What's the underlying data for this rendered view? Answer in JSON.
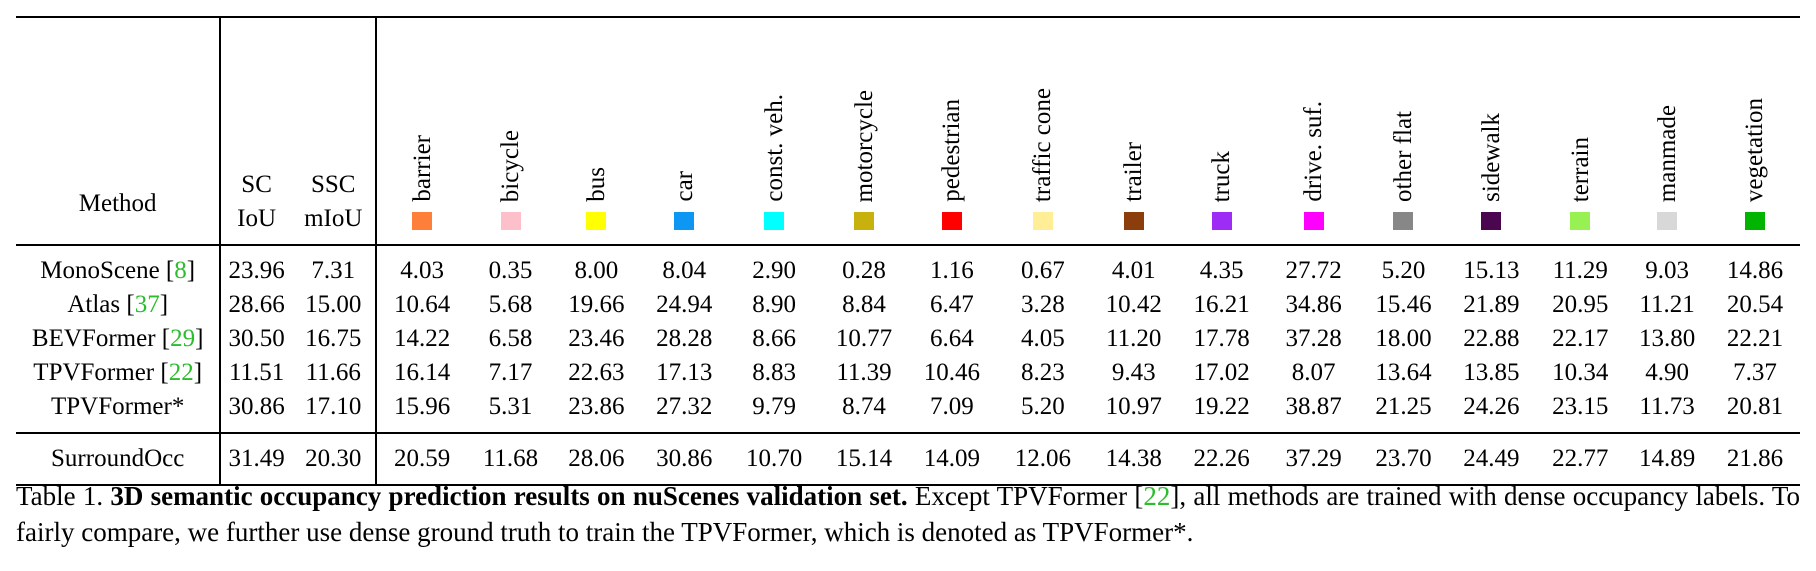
{
  "table": {
    "headers": {
      "method": "Method",
      "sc_line1": "SC",
      "sc_line2": "IoU",
      "ssc_line1": "SSC",
      "ssc_line2": "mIoU"
    },
    "classes": [
      {
        "name": "barrier",
        "color": "#fe7f3a"
      },
      {
        "name": "bicycle",
        "color": "#fdc0cb"
      },
      {
        "name": "bus",
        "color": "#ffff00"
      },
      {
        "name": "car",
        "color": "#0d96f2"
      },
      {
        "name": "const. veh.",
        "color": "#00ffff"
      },
      {
        "name": "motorcycle",
        "color": "#c8b10d"
      },
      {
        "name": "pedestrian",
        "color": "#ff0000"
      },
      {
        "name": "traffic cone",
        "color": "#ffee96"
      },
      {
        "name": "trailer",
        "color": "#8b3e0c"
      },
      {
        "name": "truck",
        "color": "#9d2cf4"
      },
      {
        "name": "drive. suf.",
        "color": "#ff00ff"
      },
      {
        "name": "other flat",
        "color": "#878787"
      },
      {
        "name": "sidewalk",
        "color": "#4b0650"
      },
      {
        "name": "terrain",
        "color": "#97f153"
      },
      {
        "name": "manmade",
        "color": "#d8d8d8"
      },
      {
        "name": "vegetation",
        "color": "#00b400"
      }
    ],
    "rows": [
      {
        "name": "MonoScene [",
        "cite": "8",
        "tail": "]",
        "sc": "23.96",
        "ssc": "7.31",
        "vals": [
          "4.03",
          "0.35",
          "8.00",
          "8.04",
          "2.90",
          "0.28",
          "1.16",
          "0.67",
          "4.01",
          "4.35",
          "27.72",
          "5.20",
          "15.13",
          "11.29",
          "9.03",
          "14.86"
        ],
        "bold": []
      },
      {
        "name": "Atlas [",
        "cite": "37",
        "tail": "]",
        "sc": "28.66",
        "ssc": "15.00",
        "vals": [
          "10.64",
          "5.68",
          "19.66",
          "24.94",
          "8.90",
          "8.84",
          "6.47",
          "3.28",
          "10.42",
          "16.21",
          "34.86",
          "15.46",
          "21.89",
          "20.95",
          "11.21",
          "20.54"
        ],
        "bold": []
      },
      {
        "name": "BEVFormer [",
        "cite": "29",
        "tail": "]",
        "sc": "30.50",
        "ssc": "16.75",
        "vals": [
          "14.22",
          "6.58",
          "23.46",
          "28.28",
          "8.66",
          "10.77",
          "6.64",
          "4.05",
          "11.20",
          "17.78",
          "37.28",
          "18.00",
          "22.88",
          "22.17",
          "13.80",
          "22.21"
        ],
        "bold": []
      },
      {
        "name": "TPVFormer [",
        "cite": "22",
        "tail": "]",
        "sc": "11.51",
        "ssc": "11.66",
        "vals": [
          "16.14",
          "7.17",
          "22.63",
          "17.13",
          "8.83",
          "11.39",
          "10.46",
          "8.23",
          "9.43",
          "17.02",
          "8.07",
          "13.64",
          "13.85",
          "10.34",
          "4.90",
          "7.37"
        ],
        "bold": []
      },
      {
        "name": "TPVFormer*",
        "cite": "",
        "tail": "",
        "sc": "30.86",
        "ssc": "17.10",
        "vals": [
          "15.96",
          "5.31",
          "23.86",
          "27.32",
          "9.79",
          "8.74",
          "7.09",
          "5.20",
          "10.97",
          "19.22",
          "38.87",
          "21.25",
          "24.26",
          "23.15",
          "11.73",
          "20.81"
        ],
        "bold": [
          10,
          13
        ]
      }
    ],
    "ours": {
      "name": "SurroundOcc",
      "sc": "31.49",
      "ssc": "20.30",
      "vals": [
        "20.59",
        "11.68",
        "28.06",
        "30.86",
        "10.70",
        "15.14",
        "14.09",
        "12.06",
        "14.38",
        "22.26",
        "37.29",
        "23.70",
        "24.49",
        "22.77",
        "14.89",
        "21.86"
      ],
      "bold": [
        0,
        1,
        2,
        3,
        4,
        5,
        6,
        7,
        8,
        9,
        11,
        12,
        14,
        15
      ]
    }
  },
  "caption": {
    "label": "Table 1.",
    "title": "3D semantic occupancy prediction results on nuScenes validation set.",
    "text_before_cite": "Except TPVFormer [",
    "cite": "22",
    "text_after_cite": "], all methods are trained with dense occupancy labels. To fairly compare, we further use dense ground truth to train the TPVFormer, which is denoted as TPVFormer*."
  }
}
